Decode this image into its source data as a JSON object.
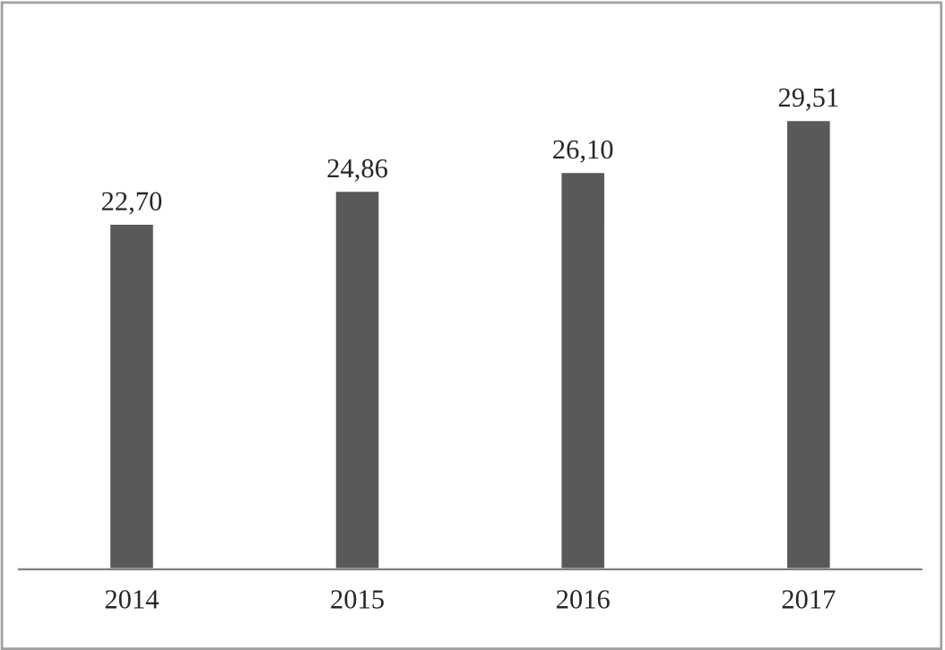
{
  "chart_data": {
    "type": "bar",
    "categories": [
      "2014",
      "2015",
      "2016",
      "2017"
    ],
    "values": [
      22.7,
      24.86,
      26.1,
      29.51
    ],
    "value_labels": [
      "22,70",
      "24,86",
      "26,10",
      "29,51"
    ],
    "color": "#595959",
    "grid": false,
    "legend": false
  }
}
